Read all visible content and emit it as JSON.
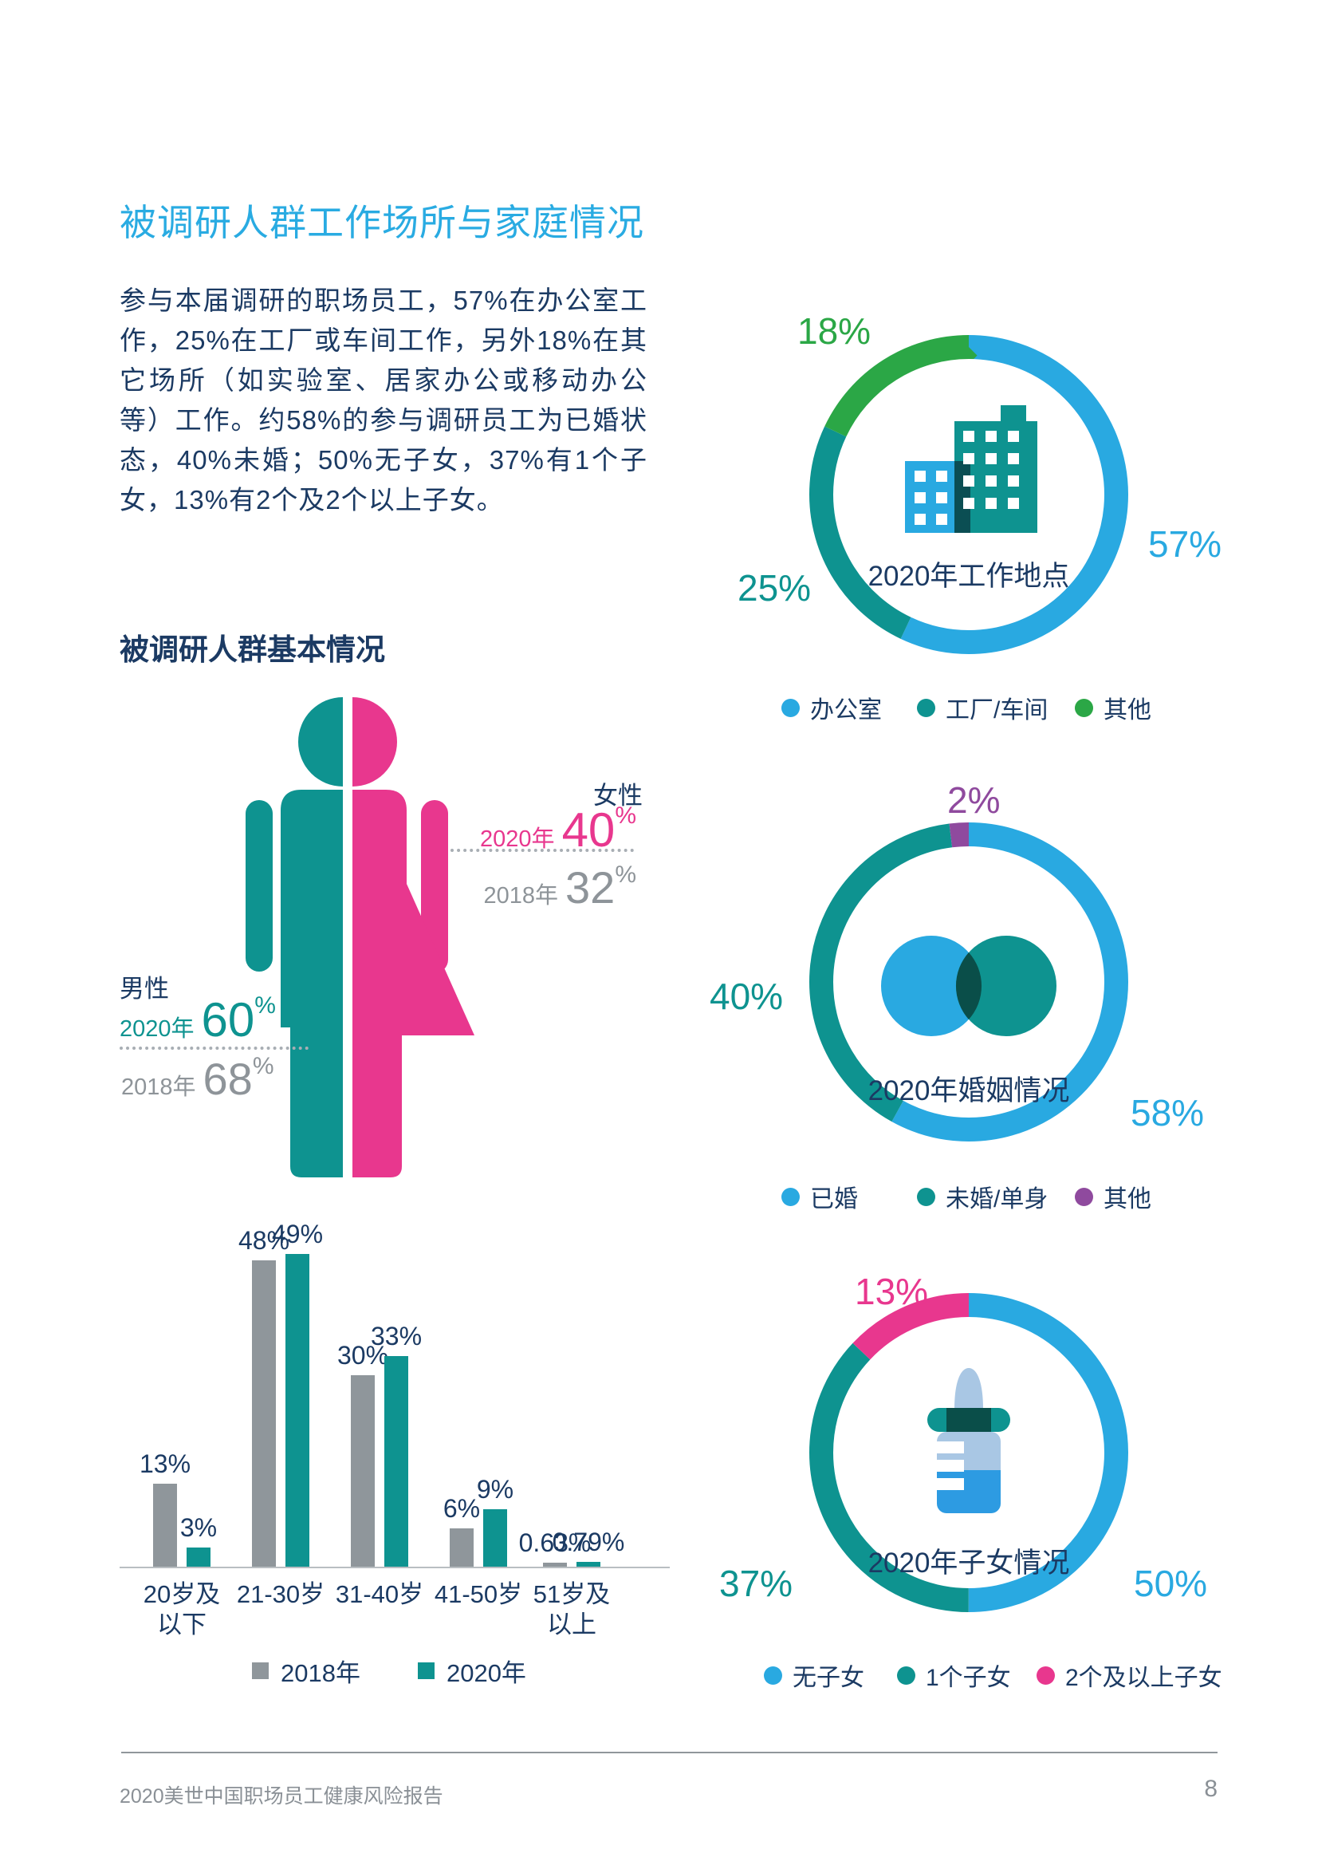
{
  "header": {
    "title": "被调研人群工作场所与家庭情况"
  },
  "intro": {
    "text": "参与本届调研的职场员工，57%在办公室工作，25%在工厂或车间工作，另外18%在其它场所（如实验室、居家办公或移动办公等）工作。约58%的参与调研员工为已婚状态，40%未婚；50%无子女，37%有1个子女，13%有2个及2个以上子女。"
  },
  "section": {
    "title": "被调研人群基本情况"
  },
  "colors": {
    "accent_blue": "#29A9E1",
    "teal": "#0E9390",
    "green": "#2BA746",
    "purple": "#8F4A9E",
    "pink": "#E8378E",
    "navy": "#1B3A63",
    "gray_text": "#8E9499",
    "bar_gray": "#8F969B",
    "title_blue": "#29ABE2"
  },
  "gender_figure": {
    "female": {
      "label": "女性",
      "y2020_label": "2020年",
      "y2020_value": "40",
      "y2020_unit": "%",
      "y2018_label": "2018年",
      "y2018_value": "32",
      "y2018_unit": "%",
      "color": "#E8378E"
    },
    "male": {
      "label": "男性",
      "y2020_label": "2020年",
      "y2020_value": "60",
      "y2020_unit": "%",
      "y2018_label": "2018年",
      "y2018_value": "68",
      "y2018_unit": "%",
      "color": "#0E9390"
    }
  },
  "chart_data": [
    {
      "type": "pie",
      "variant": "donut",
      "title": "2020年工作地点",
      "legend_position": "bottom",
      "slices": [
        {
          "label": "办公室",
          "value": 57,
          "display": "57%",
          "color": "#29A9E1"
        },
        {
          "label": "工厂/车间",
          "value": 25,
          "display": "25%",
          "color": "#0E9390"
        },
        {
          "label": "其他",
          "value": 18,
          "display": "18%",
          "color": "#2BA746"
        }
      ]
    },
    {
      "type": "pie",
      "variant": "donut",
      "title": "2020年婚姻情况",
      "legend_position": "bottom",
      "slices": [
        {
          "label": "已婚",
          "value": 58,
          "display": "58%",
          "color": "#29A9E1"
        },
        {
          "label": "未婚/单身",
          "value": 40,
          "display": "40%",
          "color": "#0E9390"
        },
        {
          "label": "其他",
          "value": 2,
          "display": "2%",
          "color": "#8F4A9E"
        }
      ]
    },
    {
      "type": "pie",
      "variant": "donut",
      "title": "2020年子女情况",
      "legend_position": "bottom",
      "slices": [
        {
          "label": "无子女",
          "value": 50,
          "display": "50%",
          "color": "#29A9E1"
        },
        {
          "label": "1个子女",
          "value": 37,
          "display": "37%",
          "color": "#0E9390"
        },
        {
          "label": "2个及以上子女",
          "value": 13,
          "display": "13%",
          "color": "#E8378E"
        }
      ]
    },
    {
      "type": "bar",
      "grid": false,
      "ylim": [
        0,
        49
      ],
      "categories": [
        [
          "20岁及",
          "以下"
        ],
        [
          "21-30岁"
        ],
        [
          "31-40岁"
        ],
        [
          "41-50岁"
        ],
        [
          "51岁及",
          "以上"
        ]
      ],
      "series": [
        {
          "name": "2018年",
          "color": "#8F969B",
          "values": [
            13,
            48,
            30,
            6,
            0.63
          ],
          "labels": [
            "13%",
            "48%",
            "30%",
            "6%",
            "0.63%"
          ]
        },
        {
          "name": "2020年",
          "color": "#0E9390",
          "values": [
            3,
            49,
            33,
            9,
            0.79
          ],
          "labels": [
            "3%",
            "49%",
            "33%",
            "9%",
            "0.79%"
          ]
        }
      ]
    }
  ],
  "footer": {
    "report_title": "2020美世中国职场员工健康风险报告",
    "page_number": "8"
  }
}
